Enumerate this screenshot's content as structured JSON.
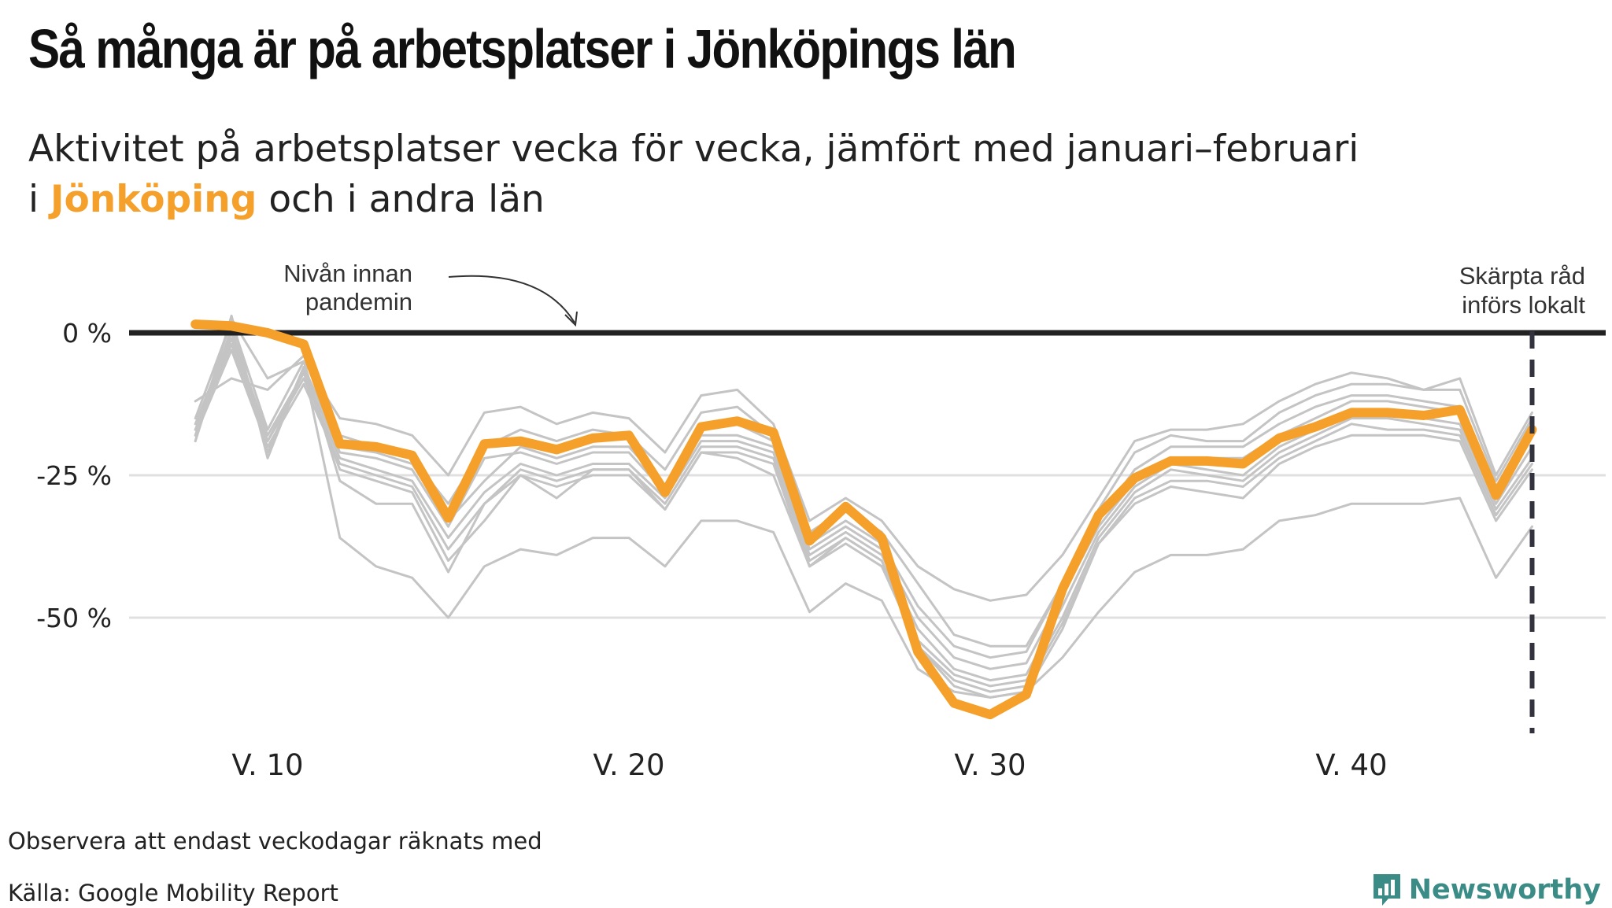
{
  "title": "Så många är på arbetsplatser i Jönköpings län",
  "subtitle": {
    "line1": "Aktivitet på arbetsplatser vecka för vecka, jämfört med januari–februari",
    "prefix": "i ",
    "highlight": "Jönköping",
    "suffix": " och i andra län"
  },
  "colors": {
    "highlight": "#f5a02b",
    "others": "#c4c4c4",
    "baseline": "#222222",
    "grid": "#e0e0e0",
    "brand": "#3b8c87"
  },
  "chart_data": {
    "type": "line",
    "x_axis": {
      "range": [
        8,
        45.5
      ],
      "ticks": [
        10,
        20,
        30,
        40
      ],
      "tick_labels": [
        "V. 10",
        "V. 20",
        "V. 30",
        "V. 40"
      ]
    },
    "y_axis": {
      "range": [
        -70,
        10
      ],
      "ticks": [
        0,
        -25,
        -50
      ],
      "tick_labels": [
        "0 %",
        "-25 %",
        "-50 %"
      ],
      "gridlines": true
    },
    "baseline_annotation": {
      "text_line1": "Nivån innan",
      "text_line2": "pandemin",
      "value": 0
    },
    "event": {
      "week": 45,
      "text_line1": "Skärpta råd",
      "text_line2": "införs lokalt"
    },
    "weeks": [
      8,
      9,
      10,
      11,
      12,
      13,
      14,
      15,
      16,
      17,
      18,
      19,
      20,
      21,
      22,
      23,
      24,
      25,
      26,
      27,
      28,
      29,
      30,
      31,
      32,
      33,
      34,
      35,
      36,
      37,
      38,
      39,
      40,
      41,
      42,
      43,
      44,
      45
    ],
    "highlight_series": {
      "name": "Jönköping",
      "values": [
        1.5,
        1.2,
        0,
        -2,
        -19.5,
        -20,
        -21.5,
        -32.5,
        -19.5,
        -19,
        -20.5,
        -18.5,
        -18,
        -28,
        -16.5,
        -15.5,
        -17.5,
        -36.5,
        -30.5,
        -36,
        -56,
        -65,
        -67,
        -63.5,
        -45,
        -32,
        -25.5,
        -22.5,
        -22.5,
        -23,
        -18.5,
        -16.5,
        -14,
        -14,
        -14.5,
        -13.5,
        -28.5,
        -17
      ]
    },
    "other_series": [
      {
        "values": [
          -18,
          2.5,
          -8,
          -5,
          -15,
          -16,
          -18,
          -25,
          -14,
          -13,
          -16,
          -14,
          -15,
          -21,
          -11,
          -10,
          -16,
          -33,
          -29,
          -33,
          -41,
          -45,
          -47,
          -46,
          -39,
          -29,
          -19,
          -17,
          -17,
          -16,
          -12,
          -9,
          -7,
          -8,
          -10,
          -8,
          -25,
          -14
        ]
      },
      {
        "values": [
          -12,
          -8,
          -10,
          -4,
          -18,
          -20,
          -22,
          -30,
          -20,
          -17,
          -19,
          -17,
          -18,
          -24,
          -14,
          -13,
          -18,
          -35,
          -31,
          -35,
          -44,
          -53,
          -55,
          -55,
          -44,
          -31,
          -21,
          -18,
          -19,
          -19,
          -14,
          -11,
          -9,
          -9,
          -10,
          -10,
          -26,
          -15
        ]
      },
      {
        "values": [
          -19,
          1,
          -21,
          -6,
          -20,
          -21,
          -23,
          -33,
          -26,
          -20,
          -22,
          -20,
          -20,
          -27,
          -17,
          -16,
          -19,
          -37,
          -33,
          -37,
          -48,
          -55,
          -57,
          -56,
          -44,
          -33,
          -24,
          -20,
          -20,
          -20,
          -16,
          -13,
          -11,
          -11,
          -12,
          -13,
          -27,
          -16
        ]
      },
      {
        "values": [
          -16,
          0,
          -18,
          -7,
          -21,
          -22,
          -24,
          -34,
          -22,
          -21,
          -23,
          -21,
          -21,
          -28,
          -18,
          -18,
          -20,
          -38,
          -34,
          -38,
          -50,
          -57,
          -59,
          -58,
          -46,
          -34,
          -26,
          -22,
          -22,
          -22,
          -18,
          -15,
          -12,
          -12,
          -13,
          -14,
          -29,
          -18
        ]
      },
      {
        "values": [
          -17,
          -2,
          -19,
          -8,
          -22,
          -24,
          -26,
          -36,
          -28,
          -23,
          -25,
          -23,
          -23,
          -29,
          -19,
          -19,
          -21,
          -39,
          -35,
          -39,
          -52,
          -59,
          -61,
          -60,
          -48,
          -35,
          -27,
          -23,
          -24,
          -25,
          -20,
          -17,
          -14,
          -14,
          -15,
          -16,
          -30,
          -20
        ]
      },
      {
        "values": [
          -18,
          -3,
          -20,
          -9,
          -23,
          -25,
          -27,
          -38,
          -30,
          -24,
          -26,
          -24,
          -24,
          -30,
          -20,
          -20,
          -22,
          -40,
          -36,
          -40,
          -54,
          -60,
          -62,
          -61,
          -50,
          -36,
          -28,
          -24,
          -25,
          -26,
          -21,
          -18,
          -15,
          -15,
          -16,
          -17,
          -31,
          -22
        ]
      },
      {
        "values": [
          -17,
          -1,
          -19,
          -7,
          -24,
          -26,
          -28,
          -40,
          -33,
          -25,
          -27,
          -25,
          -25,
          -31,
          -21,
          -21,
          -23,
          -41,
          -37,
          -41,
          -55,
          -61,
          -63,
          -62,
          -51,
          -37,
          -29,
          -26,
          -26,
          -27,
          -22,
          -19,
          -16,
          -17,
          -17,
          -18,
          -32,
          -23
        ]
      },
      {
        "values": [
          -15,
          2,
          -17,
          -5,
          -26,
          -30,
          -30,
          -42,
          -30,
          -25,
          -29,
          -24,
          -24,
          -31,
          -21,
          -22,
          -25,
          -41,
          -36,
          -40,
          -55,
          -62,
          -64,
          -63,
          -52,
          -37,
          -30,
          -27,
          -28,
          -29,
          -23,
          -20,
          -18,
          -18,
          -18,
          -19,
          -33,
          -24
        ]
      },
      {
        "values": [
          -19,
          3,
          -22,
          -6,
          -36,
          -41,
          -43,
          -50,
          -41,
          -38,
          -39,
          -36,
          -36,
          -41,
          -33,
          -33,
          -35,
          -49,
          -44,
          -47,
          -59,
          -63,
          -64,
          -63,
          -57,
          -49,
          -42,
          -39,
          -39,
          -38,
          -33,
          -32,
          -30,
          -30,
          -30,
          -29,
          -43,
          -34
        ]
      }
    ]
  },
  "footer": {
    "note": "Observera att endast veckodagar räknats med",
    "source": "Källa: Google Mobility Report",
    "brand": "Newsworthy"
  }
}
